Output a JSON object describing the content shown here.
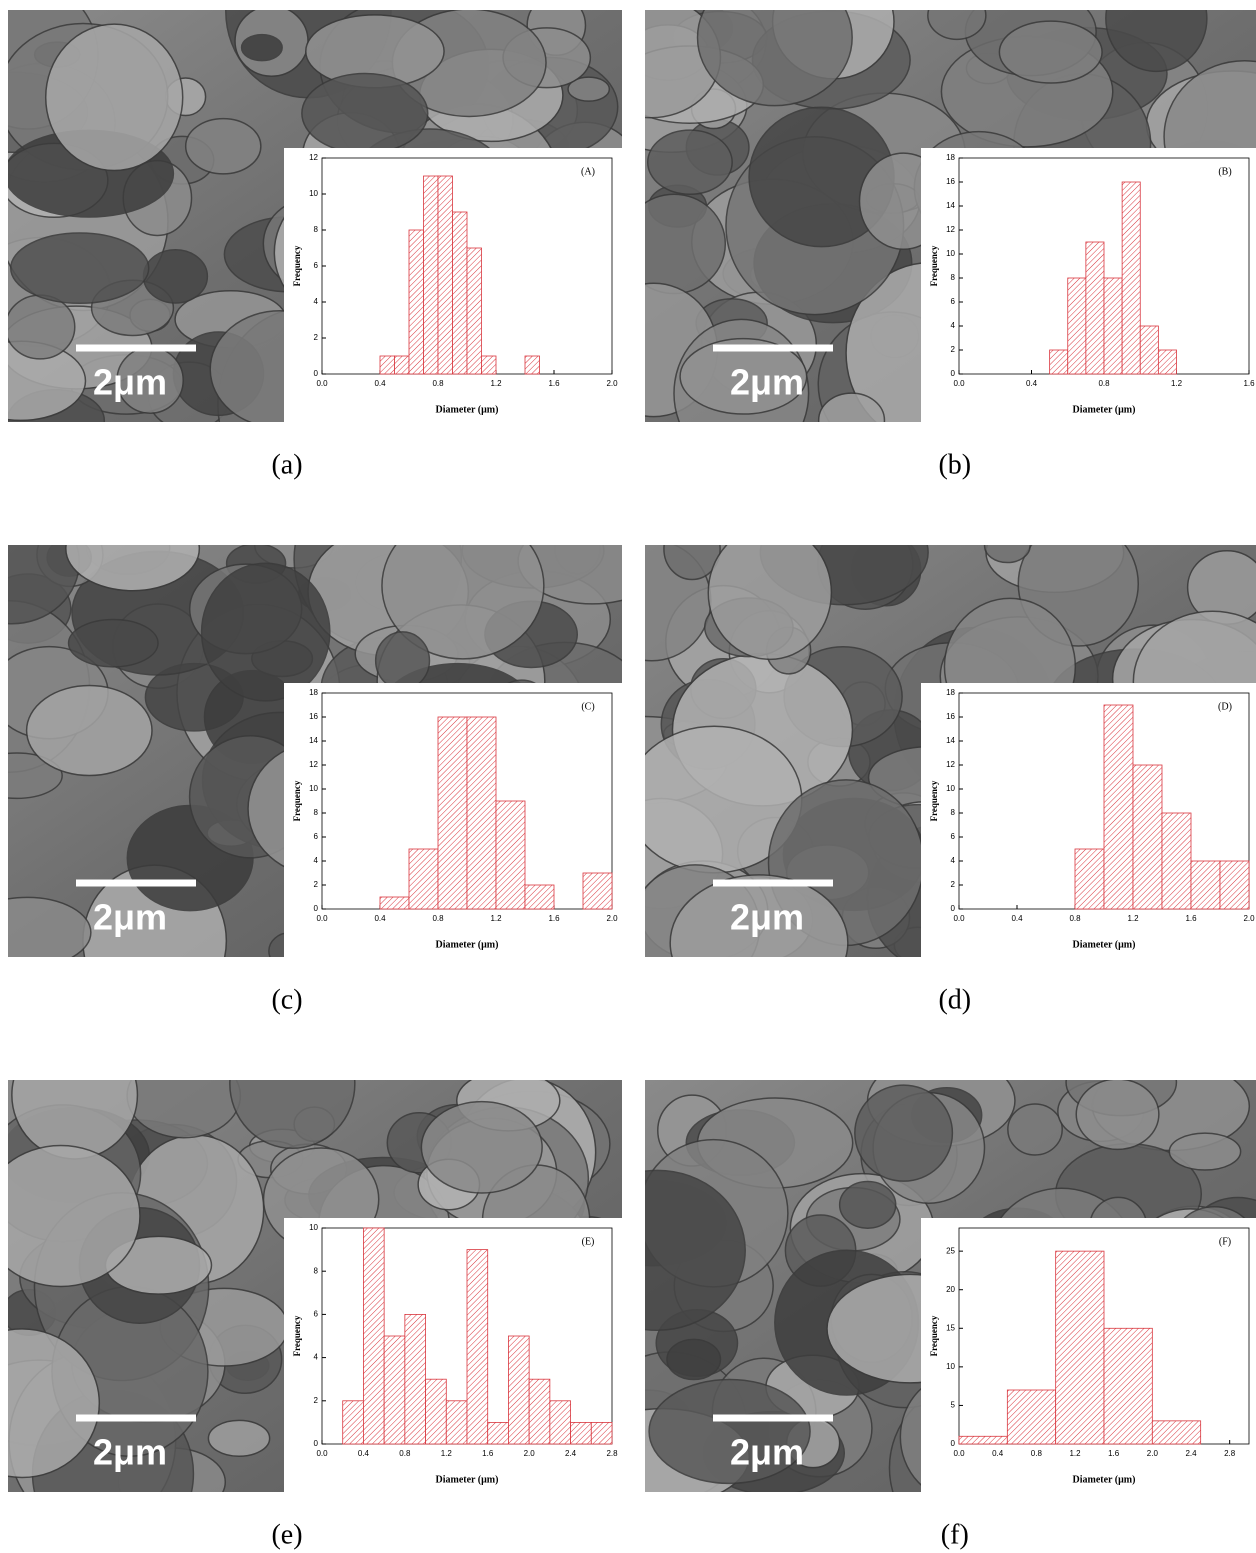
{
  "chart_data": [
    {
      "type": "histogram",
      "annotation": "(A)",
      "panel_label": "(a)",
      "scale_bar": "2μm",
      "xlabel": "Diameter (μm)",
      "ylabel": "Frequency",
      "color": "#d9363e",
      "bins": [
        0.4,
        0.5,
        0.6,
        0.7,
        0.8,
        0.9,
        1.0,
        1.1,
        1.2,
        1.3,
        1.4,
        1.5
      ],
      "values": [
        1,
        1,
        8,
        11,
        11,
        9,
        7,
        1,
        0,
        0,
        1
      ],
      "xlim": [
        0,
        2
      ],
      "xticks": [
        {
          "value": 0,
          "label": "0.0"
        },
        0.4,
        0.8,
        1.2,
        1.6,
        {
          "value": 2,
          "label": "2.0"
        }
      ],
      "ylim": [
        0,
        12
      ],
      "yticks": [
        0,
        2,
        4,
        6,
        8,
        10,
        12
      ]
    },
    {
      "type": "histogram",
      "annotation": "(B)",
      "panel_label": "(b)",
      "scale_bar": "2μm",
      "xlabel": "Diameter (μm)",
      "ylabel": "Frequency",
      "color": "#d9363e",
      "bins": [
        0.5,
        0.6,
        0.7,
        0.8,
        0.9,
        1.0,
        1.1,
        1.2
      ],
      "values": [
        2,
        8,
        11,
        8,
        16,
        4,
        2
      ],
      "xlim": [
        0,
        1.6
      ],
      "xticks": [
        {
          "value": 0,
          "label": "0.0"
        },
        0.4,
        0.8,
        1.2,
        1.6
      ],
      "ylim": [
        0,
        18
      ],
      "yticks": [
        0,
        2,
        4,
        6,
        8,
        10,
        12,
        14,
        16,
        18
      ]
    },
    {
      "type": "histogram",
      "annotation": "(C)",
      "panel_label": "(c)",
      "scale_bar": "2μm",
      "xlabel": "Diameter (μm)",
      "ylabel": "Frequency",
      "color": "#d9363e",
      "bins": [
        0.4,
        0.6,
        0.8,
        1.0,
        1.2,
        1.4,
        1.6,
        1.8,
        2.0
      ],
      "values": [
        1,
        5,
        16,
        16,
        9,
        2,
        0,
        3
      ],
      "xlim": [
        0,
        2
      ],
      "xticks": [
        {
          "value": 0,
          "label": "0.0"
        },
        0.4,
        0.8,
        1.2,
        1.6,
        {
          "value": 2,
          "label": "2.0"
        }
      ],
      "ylim": [
        0,
        18
      ],
      "yticks": [
        0,
        2,
        4,
        6,
        8,
        10,
        12,
        14,
        16,
        18
      ]
    },
    {
      "type": "histogram",
      "annotation": "(D)",
      "panel_label": "(d)",
      "scale_bar": "2μm",
      "xlabel": "Diameter (μm)",
      "ylabel": "Frequency",
      "color": "#d9363e",
      "bins": [
        0.8,
        1.0,
        1.2,
        1.4,
        1.6,
        1.8,
        2.0
      ],
      "values": [
        5,
        17,
        12,
        8,
        4,
        4
      ],
      "xlim": [
        0,
        2
      ],
      "xticks": [
        {
          "value": 0,
          "label": "0.0"
        },
        0.4,
        0.8,
        1.2,
        1.6,
        {
          "value": 2,
          "label": "2.0"
        }
      ],
      "ylim": [
        0,
        18
      ],
      "yticks": [
        0,
        2,
        4,
        6,
        8,
        10,
        12,
        14,
        16,
        18
      ]
    },
    {
      "type": "histogram",
      "annotation": "(E)",
      "panel_label": "(e)",
      "scale_bar": "2μm",
      "xlabel": "Diameter (μm)",
      "ylabel": "Frequency",
      "color": "#d9363e",
      "bins": [
        0.2,
        0.4,
        0.6,
        0.8,
        1.0,
        1.2,
        1.4,
        1.6,
        1.8,
        2.0,
        2.2,
        2.4,
        2.6,
        2.8
      ],
      "values": [
        2,
        10,
        5,
        6,
        3,
        2,
        9,
        1,
        5,
        3,
        2,
        1,
        1
      ],
      "xlim": [
        0,
        2.8
      ],
      "xticks": [
        {
          "value": 0,
          "label": "0.0"
        },
        0.4,
        0.8,
        1.2,
        1.6,
        {
          "value": 2,
          "label": "2.0"
        },
        2.4,
        2.8
      ],
      "ylim": [
        0,
        10
      ],
      "yticks": [
        0,
        2,
        4,
        6,
        8,
        10
      ]
    },
    {
      "type": "histogram",
      "annotation": "(F)",
      "panel_label": "(f)",
      "scale_bar": "2μm",
      "xlabel": "Diameter (μm)",
      "ylabel": "Frequency",
      "color": "#d9363e",
      "bins": [
        0,
        0.5,
        1.0,
        1.5,
        2.0,
        2.5
      ],
      "values": [
        1,
        7,
        25,
        15,
        3
      ],
      "xlim": [
        0,
        3.0
      ],
      "xticks": [
        {
          "value": 0,
          "label": "0.0"
        },
        0.4,
        0.8,
        1.2,
        1.6,
        {
          "value": 2,
          "label": "2.0"
        },
        2.4,
        2.8
      ],
      "ylim": [
        0,
        28
      ],
      "yticks": [
        0,
        5,
        10,
        15,
        20,
        25
      ]
    }
  ]
}
